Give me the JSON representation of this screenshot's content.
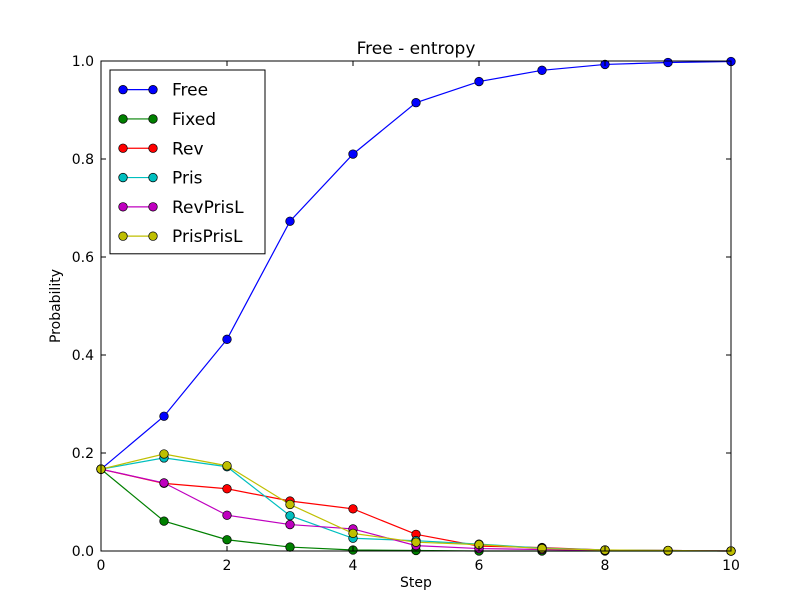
{
  "chart_data": {
    "type": "line",
    "title": "Free - entropy",
    "xlabel": "Step",
    "ylabel": "Probability",
    "xlim": [
      0,
      10
    ],
    "ylim": [
      0,
      1.0
    ],
    "xticks": [
      "0",
      "2",
      "4",
      "6",
      "8",
      "10"
    ],
    "xtick_values": [
      0,
      2,
      4,
      6,
      8,
      10
    ],
    "yticks": [
      "0.0",
      "0.2",
      "0.4",
      "0.6",
      "0.8",
      "1.0"
    ],
    "ytick_values": [
      0,
      0.2,
      0.4,
      0.6,
      0.8,
      1.0
    ],
    "grid": false,
    "legend_position": "top-left",
    "x": [
      0,
      1,
      2,
      3,
      4,
      5,
      6,
      7,
      8,
      9,
      10
    ],
    "series": [
      {
        "name": "Free",
        "color": "#0000ff",
        "values": [
          0.167,
          0.275,
          0.432,
          0.673,
          0.81,
          0.915,
          0.958,
          0.981,
          0.993,
          0.997,
          0.999
        ]
      },
      {
        "name": "Fixed",
        "color": "#008000",
        "values": [
          0.167,
          0.061,
          0.023,
          0.008,
          0.002,
          0.001,
          0.0,
          0.0,
          0.0,
          0.0,
          0.0
        ]
      },
      {
        "name": "Rev",
        "color": "#ff0000",
        "values": [
          0.167,
          0.138,
          0.127,
          0.102,
          0.086,
          0.034,
          0.01,
          0.007,
          0.002,
          0.001,
          0.0
        ]
      },
      {
        "name": "Pris",
        "color": "#00bfbf",
        "values": [
          0.167,
          0.19,
          0.172,
          0.072,
          0.026,
          0.021,
          0.014,
          0.006,
          0.002,
          0.001,
          0.0
        ]
      },
      {
        "name": "RevPrisL",
        "color": "#bf00bf",
        "values": [
          0.167,
          0.139,
          0.073,
          0.054,
          0.045,
          0.011,
          0.005,
          0.003,
          0.001,
          0.001,
          0.0
        ]
      },
      {
        "name": "PrisPrisL",
        "color": "#bfbf00",
        "values": [
          0.167,
          0.198,
          0.174,
          0.095,
          0.036,
          0.018,
          0.013,
          0.005,
          0.002,
          0.001,
          0.0
        ]
      }
    ]
  }
}
